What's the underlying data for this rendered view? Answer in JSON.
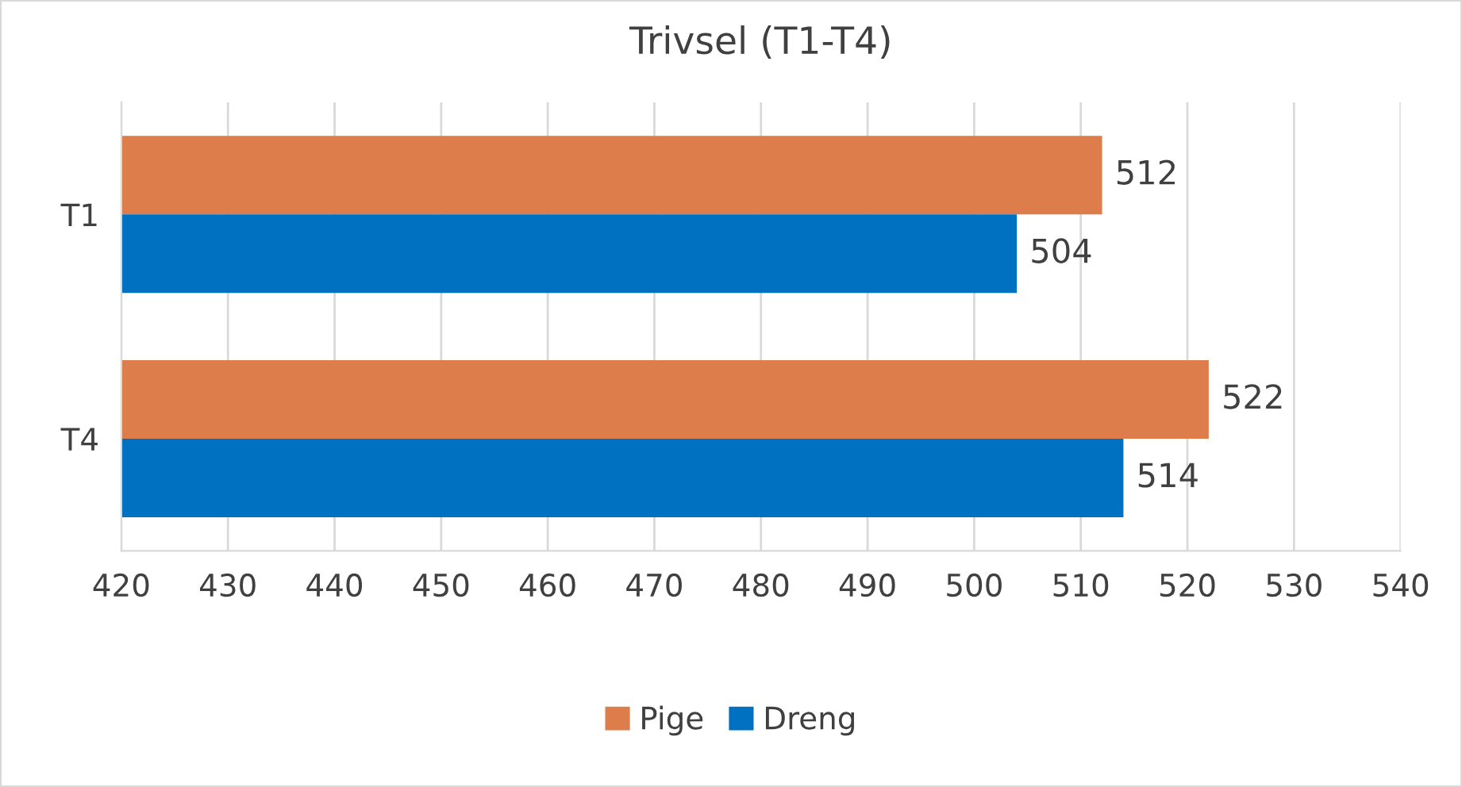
{
  "chart_data": {
    "type": "bar",
    "orientation": "horizontal",
    "title": "Trivsel (T1-T4)",
    "categories": [
      "T1",
      "T4"
    ],
    "series": [
      {
        "name": "Pige",
        "color": "#dd7d4b",
        "values": [
          512,
          522
        ]
      },
      {
        "name": "Dreng",
        "color": "#0070c0",
        "values": [
          504,
          514
        ]
      }
    ],
    "xlim": [
      420,
      540
    ],
    "xticks": [
      420,
      430,
      440,
      450,
      460,
      470,
      480,
      490,
      500,
      510,
      520,
      530,
      540
    ],
    "grid": "x",
    "legend": "bottom",
    "data_labels": true
  }
}
